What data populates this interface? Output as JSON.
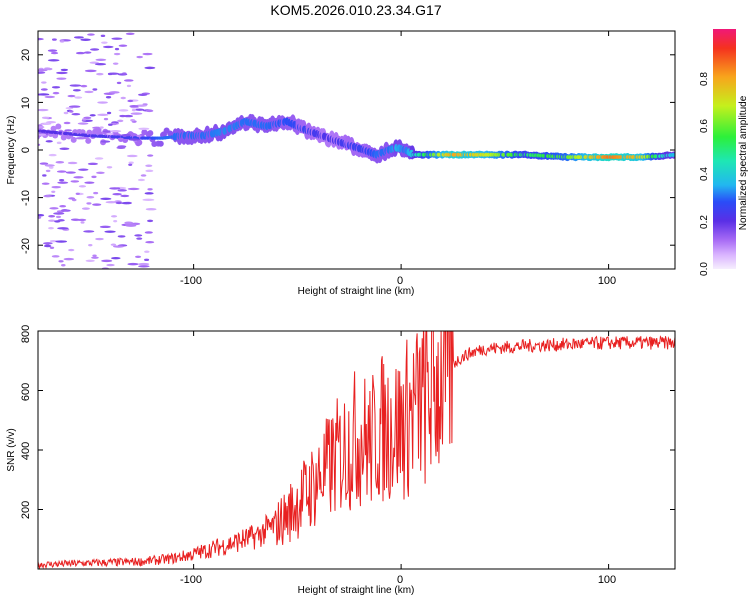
{
  "figure": {
    "title": "KOM5.2026.010.23.34.G17"
  },
  "chart_data": [
    {
      "type": "heatmap",
      "title": "KOM5.2026.010.23.34.G17",
      "xlabel": "Height of straight line (km)",
      "ylabel": "Frequency (Hz)",
      "xlim": [
        -175,
        132
      ],
      "ylim": [
        -25,
        25
      ],
      "x_ticks": [
        -100,
        0,
        100
      ],
      "x_tick_labels": [
        "-100",
        "0",
        "100"
      ],
      "y_ticks": [
        -20,
        -10,
        0,
        10,
        20
      ],
      "y_tick_labels": [
        "-20",
        "-10",
        "0",
        "10",
        "20"
      ],
      "ridge": {
        "x": [
          -175,
          -150,
          -125,
          -115,
          -105,
          -95,
          -85,
          -75,
          -65,
          -55,
          -45,
          -38,
          -32,
          -25,
          -18,
          -12,
          -6,
          -2,
          2,
          6,
          10,
          15,
          25,
          40,
          60,
          80,
          100,
          115,
          125,
          132
        ],
        "freq": [
          4,
          3,
          2.5,
          2.5,
          3,
          3,
          4,
          6,
          5,
          6,
          4,
          3,
          2,
          1,
          0,
          -1,
          0,
          0.5,
          0,
          -1,
          -1,
          -1,
          -1,
          -1,
          -1,
          -1.5,
          -1.5,
          -1.5,
          -1.3,
          -1
        ],
        "amplitude": [
          0.2,
          0.22,
          0.25,
          0.3,
          0.3,
          0.3,
          0.32,
          0.3,
          0.3,
          0.28,
          0.25,
          0.22,
          0.22,
          0.25,
          0.25,
          0.3,
          0.3,
          0.35,
          0.3,
          0.4,
          0.5,
          0.6,
          0.8,
          0.7,
          0.5,
          0.6,
          0.85,
          0.75,
          0.45,
          0.35
        ]
      },
      "colorbar": {
        "label": "Normalized spectral amplitude",
        "range": [
          0,
          1
        ],
        "ticks": [
          0.0,
          0.2,
          0.4,
          0.6,
          0.8
        ],
        "tick_labels": [
          "0.0",
          "0.2",
          "0.4",
          "0.6",
          "0.8"
        ]
      }
    },
    {
      "type": "line",
      "xlabel": "Height of straight line (km)",
      "ylabel": "SNR (v/v)",
      "xlim": [
        -175,
        132
      ],
      "ylim": [
        0,
        800
      ],
      "x_ticks": [
        -100,
        0,
        100
      ],
      "x_tick_labels": [
        "-100",
        "0",
        "100"
      ],
      "y_ticks": [
        200,
        400,
        600,
        800
      ],
      "y_tick_labels": [
        "200",
        "400",
        "600",
        "800"
      ],
      "series": [
        {
          "name": "SNR",
          "color": "#e82020",
          "x": [
            -175,
            -150,
            -125,
            -110,
            -100,
            -90,
            -80,
            -70,
            -60,
            -55,
            -50,
            -45,
            -40,
            -35,
            -30,
            -25,
            -20,
            -15,
            -10,
            -5,
            0,
            5,
            10,
            15,
            20,
            25,
            30,
            35,
            40,
            50,
            60,
            80,
            100,
            120,
            132
          ],
          "values": [
            15,
            20,
            25,
            35,
            50,
            70,
            90,
            110,
            150,
            180,
            220,
            260,
            300,
            340,
            380,
            420,
            450,
            420,
            470,
            480,
            480,
            530,
            560,
            600,
            650,
            690,
            715,
            730,
            740,
            745,
            750,
            755,
            760,
            760,
            760
          ]
        }
      ]
    }
  ]
}
